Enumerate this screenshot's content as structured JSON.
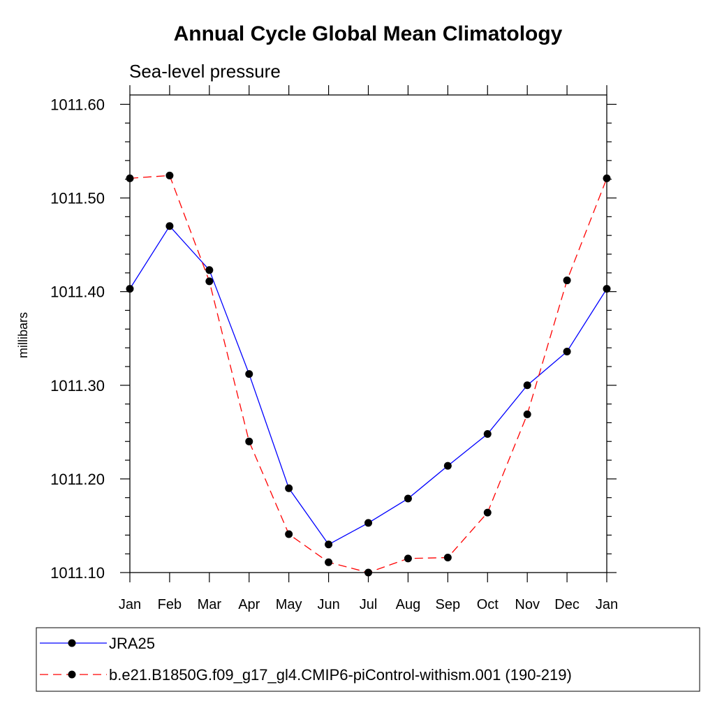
{
  "chart_data": {
    "type": "line",
    "title": "Annual Cycle Global Mean Climatology",
    "subtitle": "Sea-level pressure",
    "xlabel": "",
    "ylabel": "millibars",
    "categories": [
      "Jan",
      "Feb",
      "Mar",
      "Apr",
      "May",
      "Jun",
      "Jul",
      "Aug",
      "Sep",
      "Oct",
      "Nov",
      "Dec",
      "Jan"
    ],
    "yticks": [
      "1011.10",
      "1011.20",
      "1011.30",
      "1011.40",
      "1011.50",
      "1011.60"
    ],
    "ylim": [
      1011.1,
      1011.61
    ],
    "grid": false,
    "legend_position": "bottom",
    "series": [
      {
        "name": "JRA25",
        "color": "#0000ff",
        "dash": "solid",
        "marker": "filled-circle",
        "values": [
          1011.403,
          1011.47,
          1011.423,
          1011.312,
          1011.19,
          1011.13,
          1011.153,
          1011.179,
          1011.214,
          1011.248,
          1011.3,
          1011.336,
          1011.403
        ]
      },
      {
        "name": "b.e21.B1850G.f09_g17_gl4.CMIP6-piControl-withism.001 (190-219)",
        "color": "#ff0000",
        "dash": "dashed",
        "marker": "filled-circle",
        "values": [
          1011.521,
          1011.524,
          1011.411,
          1011.24,
          1011.141,
          1011.111,
          1011.1,
          1011.115,
          1011.116,
          1011.164,
          1011.269,
          1011.412,
          1011.521
        ]
      }
    ]
  }
}
